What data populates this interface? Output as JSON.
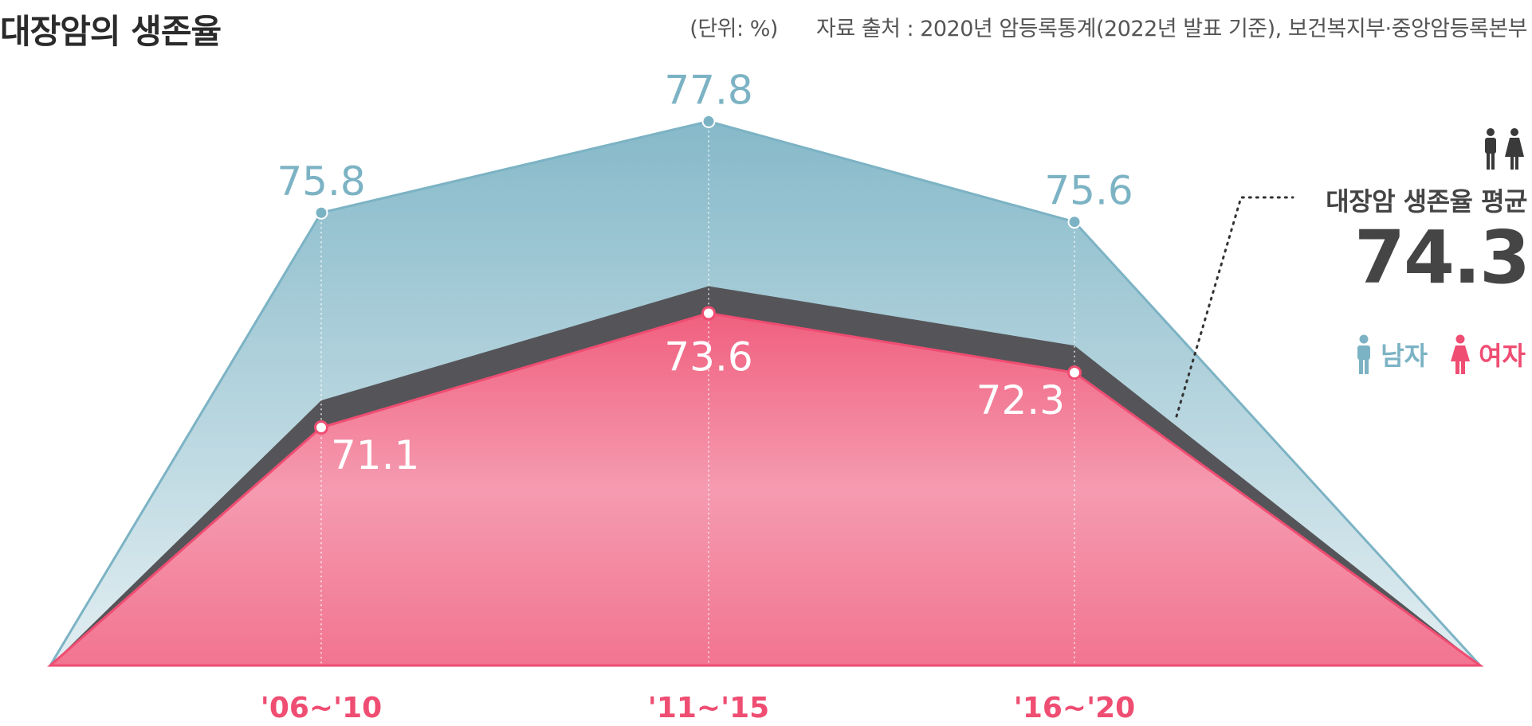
{
  "header": {
    "title": "대장암의 생존율",
    "unit": "(단위: %)",
    "source": "자료 출처 : 2020년 암등록통계(2022년 발표 기준), 보건복지부·중앙암등록본부"
  },
  "average": {
    "label": "대장암 생존율 평균",
    "value": "74.3",
    "icon": "man-woman-icon"
  },
  "legend": {
    "male": {
      "label": "남자",
      "icon": "man-icon",
      "color": "#7cb3c4"
    },
    "female": {
      "label": "여자",
      "icon": "woman-icon",
      "color": "#ef4d72"
    }
  },
  "chart_data": {
    "type": "area",
    "categories": [
      "'06~'10",
      "'11~'15",
      "'16~'20"
    ],
    "series": [
      {
        "name": "남자",
        "values": [
          75.8,
          77.8,
          75.6
        ],
        "color": "#7cb3c4"
      },
      {
        "name": "여자",
        "values": [
          71.1,
          73.6,
          72.3
        ],
        "color": "#ef4d72"
      }
    ],
    "average_line": {
      "color": "#555559"
    },
    "average": 74.3,
    "grid": false
  }
}
